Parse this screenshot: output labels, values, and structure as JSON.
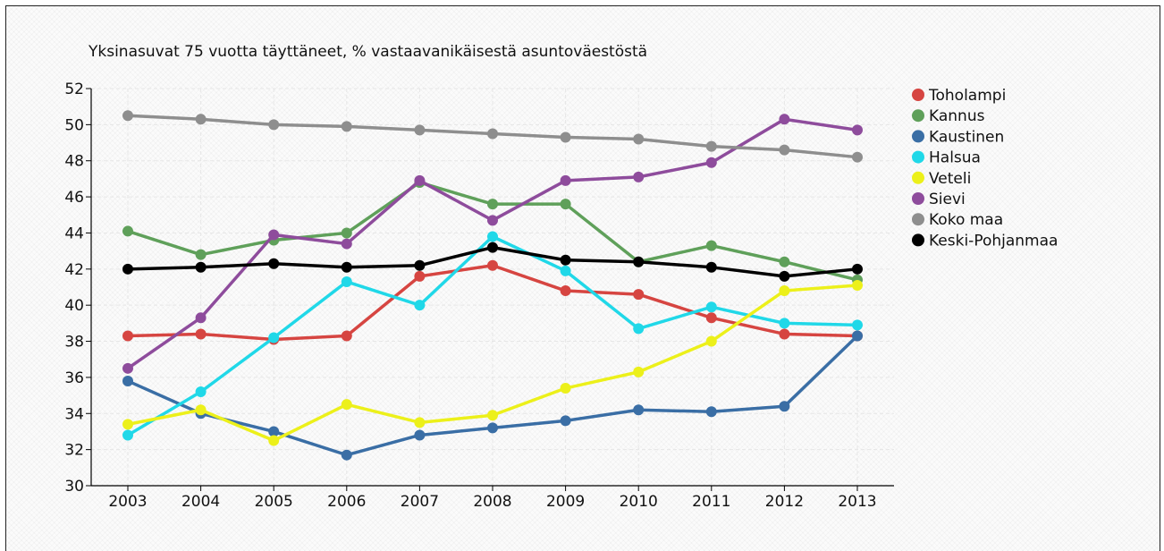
{
  "chart_data": {
    "type": "line",
    "title": "Yksinasuvat 75 vuotta täyttäneet, % vastaavanikäisestä asuntoväestöstä",
    "xlabel": "",
    "ylabel": "",
    "categories": [
      "2003",
      "2004",
      "2005",
      "2006",
      "2007",
      "2008",
      "2009",
      "2010",
      "2011",
      "2012",
      "2013"
    ],
    "ylim": [
      30,
      52
    ],
    "yticks": [
      "30",
      "32",
      "34",
      "36",
      "38",
      "40",
      "42",
      "44",
      "46",
      "48",
      "50",
      "52"
    ],
    "grid": true,
    "legend_position": "right",
    "series": [
      {
        "name": "Toholampi",
        "color": "#d64541",
        "values": [
          38.3,
          38.4,
          38.1,
          38.3,
          41.6,
          42.2,
          40.8,
          40.6,
          39.3,
          38.4,
          38.3
        ]
      },
      {
        "name": "Kannus",
        "color": "#5fa05a",
        "values": [
          44.1,
          42.8,
          43.6,
          44.0,
          46.8,
          45.6,
          45.6,
          42.4,
          43.3,
          42.4,
          41.4
        ]
      },
      {
        "name": "Kaustinen",
        "color": "#3a6ea5",
        "values": [
          35.8,
          34.0,
          33.0,
          31.7,
          32.8,
          33.2,
          33.6,
          34.2,
          34.1,
          34.4,
          38.3
        ]
      },
      {
        "name": "Halsua",
        "color": "#20d8e8",
        "values": [
          32.8,
          35.2,
          38.2,
          41.3,
          40.0,
          43.8,
          41.9,
          38.7,
          39.9,
          39.0,
          38.9
        ]
      },
      {
        "name": "Veteli",
        "color": "#ecf01a",
        "values": [
          33.4,
          34.2,
          32.5,
          34.5,
          33.5,
          33.9,
          35.4,
          36.3,
          38.0,
          40.8,
          41.1
        ]
      },
      {
        "name": "Sievi",
        "color": "#8e4c9c",
        "values": [
          36.5,
          39.3,
          43.9,
          43.4,
          46.9,
          44.7,
          46.9,
          47.1,
          47.9,
          50.3,
          49.7
        ]
      },
      {
        "name": "Koko maa",
        "color": "#8e8e8e",
        "values": [
          50.5,
          50.3,
          50.0,
          49.9,
          49.7,
          49.5,
          49.3,
          49.2,
          48.8,
          48.6,
          48.2
        ]
      },
      {
        "name": "Keski-Pohjanmaa",
        "color": "#000000",
        "values": [
          42.0,
          42.1,
          42.3,
          42.1,
          42.2,
          43.2,
          42.5,
          42.4,
          42.1,
          41.6,
          42.0
        ]
      }
    ]
  }
}
